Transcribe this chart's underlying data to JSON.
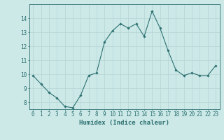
{
  "x": [
    0,
    1,
    2,
    3,
    4,
    5,
    6,
    7,
    8,
    9,
    10,
    11,
    12,
    13,
    14,
    15,
    16,
    17,
    18,
    19,
    20,
    21,
    22,
    23
  ],
  "y": [
    9.9,
    9.3,
    8.7,
    8.3,
    7.7,
    7.6,
    8.5,
    9.9,
    10.1,
    12.3,
    13.1,
    13.6,
    13.3,
    13.6,
    12.7,
    14.5,
    13.3,
    11.7,
    10.3,
    9.9,
    10.1,
    9.9,
    9.9,
    10.6
  ],
  "line_color": "#2d7070",
  "marker": "D",
  "marker_size": 1.8,
  "bg_color": "#cce9e8",
  "grid_color": "#b8d8d7",
  "xlabel": "Humidex (Indice chaleur)",
  "xlabel_fontsize": 6.5,
  "tick_fontsize": 5.5,
  "ylim": [
    7.5,
    15.0
  ],
  "yticks": [
    8,
    9,
    10,
    11,
    12,
    13,
    14
  ],
  "xlim": [
    -0.5,
    23.5
  ]
}
